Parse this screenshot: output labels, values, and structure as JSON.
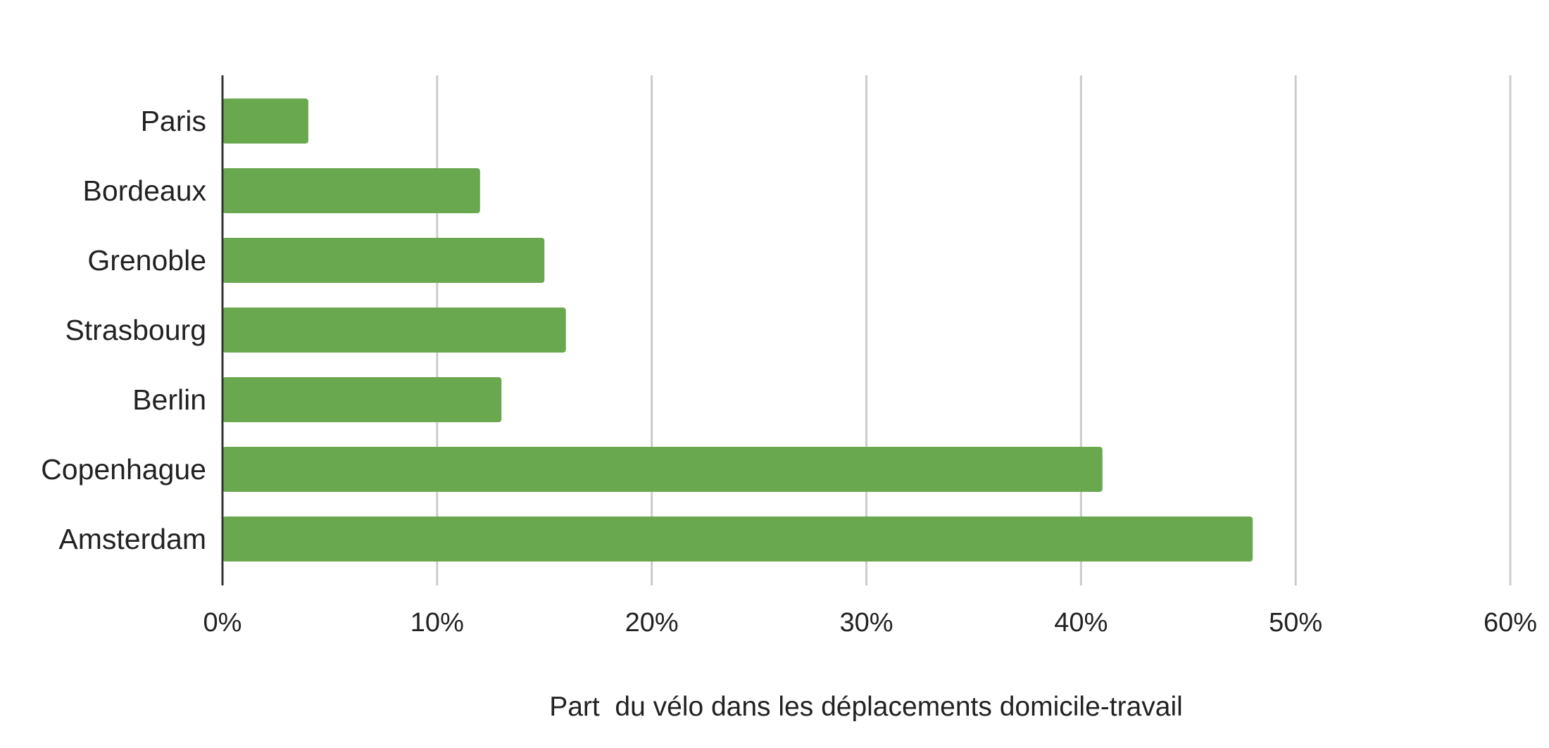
{
  "chart_data": {
    "type": "bar",
    "orientation": "horizontal",
    "categories": [
      "Paris",
      "Bordeaux",
      "Grenoble",
      "Strasbourg",
      "Berlin",
      "Copenhague",
      "Amsterdam"
    ],
    "values": [
      4,
      12,
      15,
      16,
      13,
      41,
      48
    ],
    "unit": "%",
    "xlim": [
      0,
      60
    ],
    "x_ticks": [
      "0%",
      "10%",
      "20%",
      "30%",
      "40%",
      "50%",
      "60%"
    ],
    "xlabel": "Part  du vélo dans les déplacements domicile-travail",
    "ylabel": "",
    "title": "",
    "grid": "vertical",
    "legend": "none",
    "colors": {
      "bar": "#6aa84f",
      "grid": "#cccccc",
      "axis": "#333333",
      "text": "#222222"
    }
  }
}
